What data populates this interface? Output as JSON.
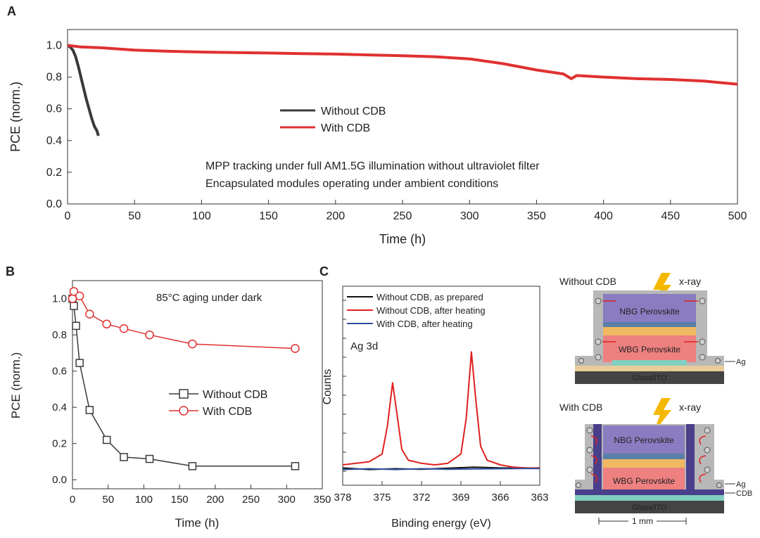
{
  "panels": {
    "a": "A",
    "b": "B",
    "c": "C"
  },
  "chart_data": [
    {
      "id": "A",
      "type": "line",
      "xlabel": "Time (h)",
      "ylabel": "PCE (norm.)",
      "xlim": [
        0,
        500
      ],
      "ylim": [
        0.0,
        1.1
      ],
      "xticks": [
        0,
        50,
        100,
        150,
        200,
        250,
        300,
        350,
        400,
        450,
        500
      ],
      "yticks": [
        0.0,
        0.2,
        0.4,
        0.6,
        0.8,
        1.0
      ],
      "legend_position": "center-left",
      "annotations": [
        "MPP tracking under full AM1.5G illumination without ultraviolet filter",
        "Encapsulated modules operating under ambient conditions"
      ],
      "series": [
        {
          "name": "Without CDB",
          "color": "#3a3a3a",
          "x": [
            0,
            2,
            4,
            6,
            8,
            10,
            12,
            14,
            16,
            18,
            20,
            22,
            23
          ],
          "y": [
            1.0,
            0.99,
            0.97,
            0.93,
            0.87,
            0.8,
            0.73,
            0.66,
            0.6,
            0.54,
            0.49,
            0.46,
            0.43
          ]
        },
        {
          "name": "With CDB",
          "color": "#e03030",
          "x": [
            0,
            10,
            25,
            50,
            75,
            100,
            125,
            150,
            175,
            200,
            225,
            250,
            275,
            300,
            325,
            350,
            370,
            376,
            380,
            390,
            400,
            425,
            450,
            475,
            500
          ],
          "y": [
            1.0,
            0.99,
            0.985,
            0.97,
            0.963,
            0.958,
            0.955,
            0.952,
            0.948,
            0.945,
            0.94,
            0.935,
            0.928,
            0.915,
            0.885,
            0.845,
            0.82,
            0.79,
            0.81,
            0.805,
            0.8,
            0.79,
            0.785,
            0.775,
            0.755
          ]
        }
      ]
    },
    {
      "id": "B",
      "type": "line",
      "xlabel": "Time (h)",
      "ylabel": "PCE (norm.)",
      "xlim": [
        0,
        350
      ],
      "ylim": [
        -0.05,
        1.1
      ],
      "xticks": [
        0,
        50,
        100,
        150,
        200,
        250,
        300,
        350
      ],
      "yticks": [
        0.0,
        0.2,
        0.4,
        0.6,
        0.8,
        1.0
      ],
      "legend_position": "center-right",
      "annotations": [
        "85°C aging under dark"
      ],
      "series": [
        {
          "name": "Without CDB",
          "color": "#3a3a3a",
          "marker": "square",
          "x": [
            0,
            2,
            5,
            10,
            24,
            48,
            72,
            108,
            168,
            312
          ],
          "y": [
            1.0,
            0.96,
            0.85,
            0.645,
            0.385,
            0.22,
            0.125,
            0.115,
            0.075,
            0.075
          ]
        },
        {
          "name": "With CDB",
          "color": "#e03030",
          "marker": "circle",
          "x": [
            0,
            2,
            10,
            24,
            48,
            72,
            108,
            168,
            312
          ],
          "y": [
            1.0,
            1.04,
            1.015,
            0.915,
            0.86,
            0.835,
            0.8,
            0.75,
            0.725
          ]
        }
      ]
    },
    {
      "id": "C",
      "type": "line",
      "xlabel": "Binding energy (eV)",
      "ylabel": "Counts",
      "xlim": [
        378,
        363
      ],
      "xticks": [
        378,
        375,
        372,
        369,
        366,
        363
      ],
      "axis_reversed": true,
      "legend_position": "top",
      "annotations": [
        "Ag 3d"
      ],
      "series": [
        {
          "name": "Without CDB, as prepared",
          "color": "#111111",
          "x": [
            378,
            376,
            374,
            372,
            370,
            368,
            366,
            364,
            363
          ],
          "y": [
            0.03,
            0.02,
            0.025,
            0.022,
            0.028,
            0.035,
            0.03,
            0.028,
            0.03
          ]
        },
        {
          "name": "Without CDB, after heating",
          "color": "#e02020",
          "x": [
            378,
            376,
            375,
            374.6,
            374.2,
            373.9,
            373.5,
            373,
            372,
            371,
            370,
            369,
            368.6,
            368.2,
            367.9,
            367.5,
            367,
            366,
            365,
            364,
            363
          ],
          "y": [
            0.05,
            0.07,
            0.12,
            0.3,
            0.58,
            0.4,
            0.15,
            0.08,
            0.06,
            0.05,
            0.06,
            0.12,
            0.35,
            0.78,
            0.5,
            0.17,
            0.08,
            0.05,
            0.035,
            0.03,
            0.03
          ]
        },
        {
          "name": "With CDB, after heating",
          "color": "#3050a0",
          "x": [
            378,
            376,
            374,
            372,
            370,
            368,
            366,
            364,
            363
          ],
          "y": [
            0.02,
            0.025,
            0.02,
            0.025,
            0.022,
            0.024,
            0.025,
            0.027,
            0.026
          ]
        }
      ]
    }
  ],
  "schematic": {
    "top": {
      "title": "Without CDB",
      "source": "x-ray",
      "nbg": "NBG Perovskite",
      "wbg": "WBG Perovskite",
      "electrode": "Ag",
      "substrate": "Glass/ITO"
    },
    "bottom": {
      "title": "With CDB",
      "source": "x-ray",
      "nbg": "NBG Perovskite",
      "wbg": "WBG Perovskite",
      "electrode": "Ag",
      "barrier": "CDB",
      "substrate": "Glass/ITO",
      "scale": "1 mm"
    },
    "colors": {
      "nbg": "#8a7cc0",
      "wbg": "#ee8080",
      "shell": "#b8b8b8",
      "glass": "#444444",
      "cdb": "#4a3f8a",
      "arrow": "#e02020",
      "bolt": "#f5b800"
    }
  }
}
